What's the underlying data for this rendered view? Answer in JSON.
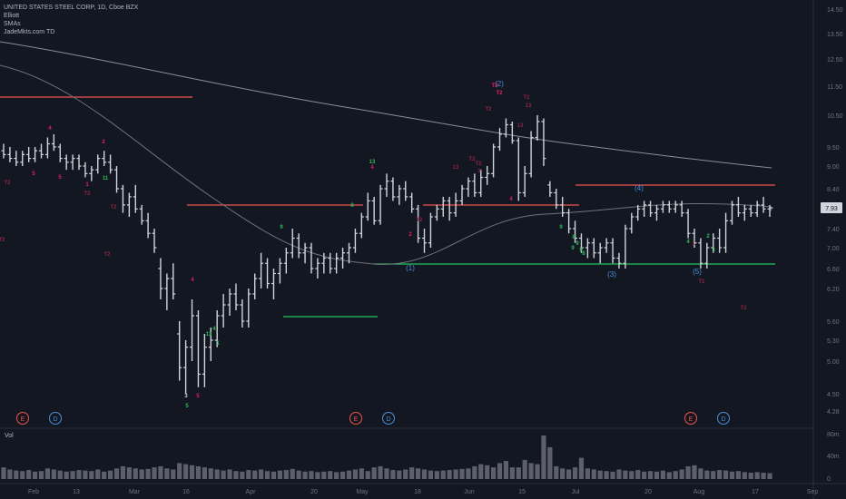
{
  "legend": {
    "line1": "UNITED STATES STEEL CORP, 1D, Cboe BZX",
    "line2": "Elliott",
    "line3": "SMAs",
    "line4": "JadeMkts.com TD"
  },
  "volume_label": "Vol",
  "chart_data": {
    "type": "candlestick",
    "price_axis_ticks": [
      "14.50",
      "13.50",
      "12.50",
      "11.50",
      "10.50",
      "9.50",
      "9.00",
      "8.40",
      "7.93",
      "7.40",
      "7.00",
      "6.60",
      "6.20",
      "5.60",
      "5.30",
      "5.00",
      "4.50",
      "4.28"
    ],
    "last_price": "7.93",
    "volume_axis_ticks": [
      "80m",
      "40m",
      "0"
    ],
    "x_ticks": [
      "Feb",
      "13",
      "Mar",
      "16",
      "Apr",
      "20",
      "May",
      "18",
      "Jun",
      "15",
      "Jul",
      "20",
      "Aug",
      "17",
      "Sep"
    ],
    "colors": {
      "bars": "#d1d4dc",
      "resistance": "#ef5350",
      "support": "#22c55e",
      "sma_long": "#8a8d96",
      "sma_short": "#6e717a",
      "wave_label": "#4a90d9",
      "td_magenta": "#e91e63",
      "td_green": "#2ebd55",
      "td_dim": "#8b2540",
      "volume": "#5d606b",
      "background": "#131722"
    },
    "series": [
      {
        "name": "Price",
        "ohlc": [
          [
            9.4,
            9.6,
            9.2,
            9.3
          ],
          [
            9.3,
            9.5,
            9.1,
            9.2
          ],
          [
            9.2,
            9.4,
            9.0,
            9.1
          ],
          [
            9.1,
            9.4,
            9.0,
            9.3
          ],
          [
            9.3,
            9.5,
            9.1,
            9.2
          ],
          [
            9.2,
            9.5,
            9.1,
            9.4
          ],
          [
            9.4,
            9.6,
            9.2,
            9.3
          ],
          [
            9.3,
            9.8,
            9.2,
            9.6
          ],
          [
            9.6,
            9.9,
            9.4,
            9.5
          ],
          [
            9.5,
            9.6,
            9.1,
            9.2
          ],
          [
            9.2,
            9.3,
            8.9,
            9.1
          ],
          [
            9.1,
            9.3,
            8.9,
            9.2
          ],
          [
            9.2,
            9.3,
            8.9,
            9.0
          ],
          [
            9.0,
            9.1,
            8.7,
            8.8
          ],
          [
            8.8,
            9.0,
            8.6,
            8.9
          ],
          [
            8.9,
            9.3,
            8.8,
            9.2
          ],
          [
            9.2,
            9.4,
            9.0,
            9.1
          ],
          [
            9.1,
            9.3,
            8.8,
            8.9
          ],
          [
            8.9,
            9.0,
            8.3,
            8.4
          ],
          [
            8.4,
            8.5,
            7.8,
            8.0
          ],
          [
            8.0,
            8.3,
            7.7,
            8.2
          ],
          [
            8.2,
            8.5,
            7.8,
            7.9
          ],
          [
            7.9,
            8.0,
            7.5,
            7.6
          ],
          [
            7.6,
            7.8,
            7.2,
            7.3
          ],
          [
            7.3,
            7.4,
            6.9,
            7.0
          ],
          [
            6.6,
            6.8,
            6.0,
            6.2
          ],
          [
            6.2,
            6.5,
            5.8,
            6.4
          ],
          [
            6.4,
            6.7,
            6.0,
            6.1
          ],
          [
            5.4,
            5.6,
            4.7,
            4.9
          ],
          [
            4.9,
            5.3,
            4.5,
            5.2
          ],
          [
            5.2,
            6.0,
            5.0,
            5.7
          ],
          [
            5.7,
            5.8,
            4.6,
            4.8
          ],
          [
            4.8,
            5.4,
            4.6,
            5.2
          ],
          [
            5.2,
            5.5,
            5.0,
            5.3
          ],
          [
            5.3,
            5.8,
            5.2,
            5.7
          ],
          [
            5.7,
            6.1,
            5.5,
            5.9
          ],
          [
            5.9,
            6.2,
            5.7,
            6.1
          ],
          [
            6.1,
            6.3,
            5.8,
            5.9
          ],
          [
            5.9,
            6.0,
            5.5,
            5.6
          ],
          [
            5.6,
            6.2,
            5.5,
            6.1
          ],
          [
            6.1,
            6.5,
            6.0,
            6.4
          ],
          [
            6.4,
            6.9,
            6.2,
            6.7
          ],
          [
            6.7,
            6.8,
            6.2,
            6.3
          ],
          [
            6.3,
            6.6,
            6.0,
            6.5
          ],
          [
            6.5,
            6.8,
            6.3,
            6.7
          ],
          [
            6.7,
            7.0,
            6.5,
            6.9
          ],
          [
            6.9,
            7.4,
            6.8,
            7.2
          ],
          [
            7.2,
            7.3,
            6.8,
            6.9
          ],
          [
            6.9,
            7.1,
            6.7,
            7.0
          ],
          [
            7.0,
            7.1,
            6.5,
            6.6
          ],
          [
            6.6,
            6.8,
            6.4,
            6.7
          ],
          [
            6.7,
            6.9,
            6.5,
            6.8
          ],
          [
            6.8,
            6.9,
            6.5,
            6.6
          ],
          [
            6.6,
            6.9,
            6.5,
            6.8
          ],
          [
            6.8,
            7.0,
            6.6,
            6.9
          ],
          [
            6.9,
            7.1,
            6.7,
            7.0
          ],
          [
            7.0,
            7.4,
            6.9,
            7.3
          ],
          [
            7.3,
            7.8,
            7.2,
            7.7
          ],
          [
            7.7,
            8.3,
            7.6,
            8.1
          ],
          [
            8.1,
            8.2,
            7.5,
            7.6
          ],
          [
            7.6,
            8.5,
            7.5,
            8.4
          ],
          [
            8.4,
            8.8,
            8.2,
            8.6
          ],
          [
            8.6,
            8.7,
            8.1,
            8.2
          ],
          [
            8.2,
            8.5,
            8.0,
            8.4
          ],
          [
            8.4,
            8.6,
            8.1,
            8.2
          ],
          [
            8.2,
            8.3,
            7.8,
            7.9
          ],
          [
            7.9,
            8.0,
            7.1,
            7.2
          ],
          [
            7.2,
            7.4,
            6.9,
            7.1
          ],
          [
            7.1,
            7.8,
            7.0,
            7.7
          ],
          [
            7.7,
            8.0,
            7.6,
            7.9
          ],
          [
            7.9,
            8.2,
            7.7,
            8.1
          ],
          [
            8.1,
            8.2,
            7.6,
            7.8
          ],
          [
            7.8,
            8.3,
            7.7,
            8.1
          ],
          [
            8.1,
            8.5,
            8.0,
            8.4
          ],
          [
            8.4,
            8.7,
            8.2,
            8.6
          ],
          [
            8.6,
            8.8,
            8.2,
            8.3
          ],
          [
            8.3,
            8.9,
            8.2,
            8.7
          ],
          [
            8.7,
            9.0,
            8.5,
            8.8
          ],
          [
            8.8,
            9.6,
            8.7,
            9.5
          ],
          [
            9.5,
            10.1,
            9.4,
            9.9
          ],
          [
            9.9,
            10.4,
            9.8,
            10.2
          ],
          [
            10.2,
            10.3,
            9.6,
            9.7
          ],
          [
            9.7,
            9.8,
            8.1,
            8.3
          ],
          [
            8.3,
            9.0,
            8.2,
            8.8
          ],
          [
            8.8,
            10.0,
            8.7,
            9.8
          ],
          [
            9.8,
            10.5,
            9.7,
            10.3
          ],
          [
            10.3,
            10.4,
            9.0,
            9.2
          ],
          [
            8.5,
            8.6,
            8.2,
            8.3
          ],
          [
            8.3,
            8.4,
            7.9,
            8.0
          ],
          [
            8.0,
            8.2,
            7.7,
            7.8
          ],
          [
            7.8,
            7.9,
            7.3,
            7.4
          ],
          [
            7.4,
            7.6,
            7.1,
            7.2
          ],
          [
            7.2,
            7.3,
            6.9,
            7.0
          ],
          [
            7.0,
            7.2,
            6.8,
            7.1
          ],
          [
            7.1,
            7.2,
            6.8,
            6.9
          ],
          [
            6.9,
            7.1,
            6.7,
            7.0
          ],
          [
            7.0,
            7.2,
            6.9,
            7.1
          ],
          [
            7.1,
            7.2,
            6.7,
            6.8
          ],
          [
            6.8,
            6.9,
            6.6,
            6.7
          ],
          [
            6.7,
            7.5,
            6.6,
            7.4
          ],
          [
            7.4,
            7.8,
            7.3,
            7.7
          ],
          [
            7.7,
            8.0,
            7.6,
            7.9
          ],
          [
            7.9,
            8.1,
            7.7,
            8.0
          ],
          [
            8.0,
            8.1,
            7.7,
            7.8
          ],
          [
            7.8,
            8.0,
            7.6,
            7.9
          ],
          [
            7.9,
            8.1,
            7.8,
            8.0
          ],
          [
            8.0,
            8.1,
            7.8,
            7.9
          ],
          [
            7.9,
            8.1,
            7.8,
            8.0
          ],
          [
            8.0,
            8.1,
            7.7,
            7.8
          ],
          [
            7.8,
            7.9,
            7.2,
            7.3
          ],
          [
            7.3,
            7.4,
            7.0,
            7.1
          ],
          [
            7.1,
            7.2,
            6.6,
            6.7
          ],
          [
            6.7,
            7.1,
            6.6,
            7.0
          ],
          [
            7.0,
            7.3,
            6.9,
            7.2
          ],
          [
            7.2,
            7.4,
            6.9,
            7.0
          ],
          [
            7.0,
            7.8,
            6.9,
            7.6
          ],
          [
            7.6,
            8.1,
            7.5,
            8.0
          ],
          [
            8.0,
            8.2,
            7.7,
            7.8
          ],
          [
            7.8,
            8.0,
            7.6,
            7.9
          ],
          [
            7.9,
            8.0,
            7.7,
            7.8
          ],
          [
            7.8,
            8.1,
            7.7,
            8.0
          ],
          [
            8.0,
            8.2,
            7.8,
            7.9
          ],
          [
            7.9,
            8.0,
            7.7,
            7.93
          ]
        ]
      },
      {
        "name": "Volume",
        "values": [
          22,
          18,
          16,
          15,
          17,
          14,
          15,
          20,
          18,
          16,
          14,
          15,
          17,
          16,
          15,
          18,
          14,
          16,
          20,
          24,
          22,
          20,
          18,
          19,
          22,
          24,
          20,
          18,
          30,
          28,
          26,
          24,
          22,
          20,
          18,
          16,
          18,
          15,
          14,
          17,
          16,
          18,
          15,
          14,
          16,
          17,
          19,
          16,
          14,
          15,
          13,
          14,
          15,
          13,
          14,
          16,
          18,
          20,
          15,
          22,
          24,
          20,
          17,
          16,
          18,
          22,
          20,
          18,
          16,
          15,
          16,
          17,
          18,
          19,
          20,
          24,
          28,
          26,
          22,
          30,
          34,
          22,
          22,
          36,
          30,
          28,
          82,
          60,
          24,
          20,
          18,
          22,
          40,
          20,
          18,
          16,
          15,
          14,
          18,
          16,
          15,
          17,
          14,
          15,
          14,
          16,
          13,
          15,
          18,
          24,
          26,
          20,
          16,
          15,
          17,
          16,
          14,
          15,
          13,
          12,
          13,
          12,
          11
        ]
      }
    ],
    "horizontal_levels": [
      {
        "role": "resistance"
      },
      {
        "role": "resistance"
      },
      {
        "role": "resistance"
      },
      {
        "role": "support"
      },
      {
        "role": "support"
      }
    ],
    "wave_labels": [
      "(2)",
      "(4)",
      "(1)",
      "(3)",
      "(5)"
    ],
    "event_markers": [
      "E",
      "D",
      "E",
      "D",
      "E",
      "D"
    ],
    "td_labels": [
      "4",
      "5",
      "5",
      "1",
      "2",
      "T2",
      "T2",
      "T2",
      "11",
      "T2",
      "T2",
      "4",
      "5",
      "3",
      "5",
      "13",
      "9",
      "8",
      "2",
      "T2",
      "13",
      "T2",
      "T2",
      "3",
      "T2",
      "13",
      "T2",
      "13",
      "T3",
      "T2",
      "4",
      "9",
      "8",
      "9",
      "9",
      "8",
      "4",
      "T1",
      "T2",
      "4",
      "1",
      "2",
      "3",
      "13",
      "1",
      "4",
      "9"
    ]
  }
}
